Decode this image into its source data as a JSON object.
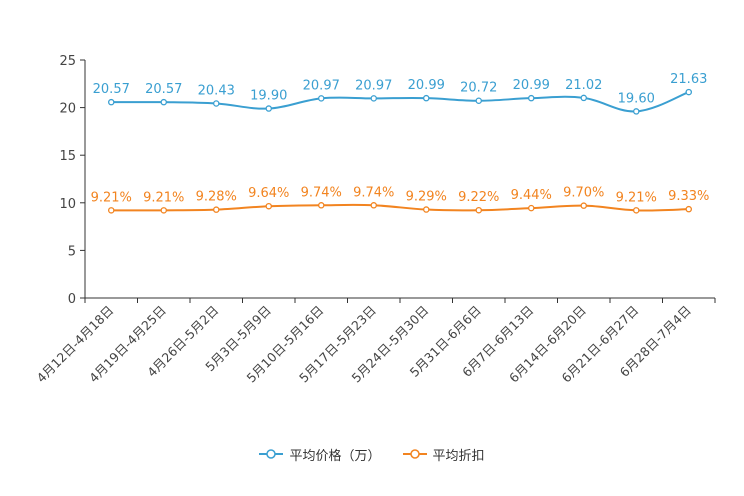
{
  "chart_data": {
    "type": "line",
    "categories": [
      "4月12日-4月18日",
      "4月19日-4月25日",
      "4月26日-5月2日",
      "5月3日-5月9日",
      "5月10日-5月16日",
      "5月17日-5月23日",
      "5月24日-5月30日",
      "5月31日-6月6日",
      "6月7日-6月13日",
      "6月14日-6月20日",
      "6月21日-6月27日",
      "6月28日-7月4日"
    ],
    "series": [
      {
        "name": "平均价格（万）",
        "color": "#3a9fd1",
        "values": [
          20.57,
          20.57,
          20.43,
          19.9,
          20.97,
          20.97,
          20.99,
          20.72,
          20.99,
          21.02,
          19.6,
          21.63
        ],
        "labels": [
          "20.57",
          "20.57",
          "20.43",
          "19.90",
          "20.97",
          "20.97",
          "20.99",
          "20.72",
          "20.99",
          "21.02",
          "19.60",
          "21.63"
        ]
      },
      {
        "name": "平均折扣",
        "color": "#f28420",
        "values": [
          9.21,
          9.21,
          9.28,
          9.64,
          9.74,
          9.74,
          9.29,
          9.22,
          9.44,
          9.7,
          9.21,
          9.33
        ],
        "labels": [
          "9.21%",
          "9.21%",
          "9.28%",
          "9.64%",
          "9.74%",
          "9.74%",
          "9.29%",
          "9.22%",
          "9.44%",
          "9.70%",
          "9.21%",
          "9.33%"
        ]
      }
    ],
    "yticks": [
      "0",
      "5",
      "10",
      "15",
      "20",
      "25"
    ],
    "ylim": [
      0,
      25
    ],
    "legend_position": "bottom-center"
  }
}
